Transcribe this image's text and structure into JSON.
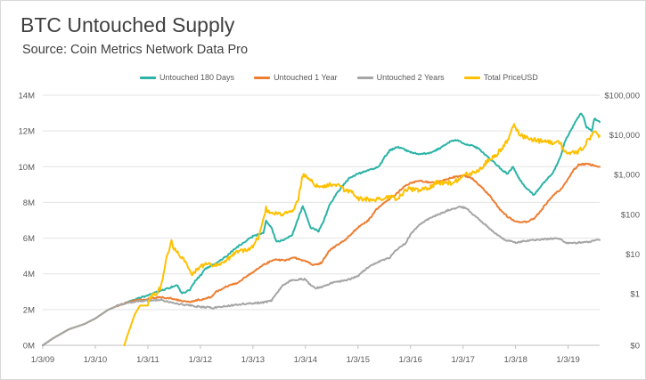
{
  "chart_data": {
    "type": "line",
    "title": "BTC Untouched Supply",
    "subtitle": "Source: Coin Metrics Network Data Pro",
    "x_ticks": [
      "1/3/09",
      "1/3/10",
      "1/3/11",
      "1/3/12",
      "1/3/13",
      "1/3/14",
      "1/3/15",
      "1/3/16",
      "1/3/17",
      "1/3/18",
      "1/3/19"
    ],
    "x_range": [
      2009.0,
      2019.6
    ],
    "y_left": {
      "ticks": [
        "0M",
        "2M",
        "4M",
        "6M",
        "8M",
        "10M",
        "12M",
        "14M"
      ],
      "range": [
        0,
        14
      ]
    },
    "y_right": {
      "ticks": [
        "$0",
        "$1",
        "$10",
        "$100",
        "$1,000",
        "$10,000",
        "$100,000"
      ],
      "range_log10": [
        -1.3,
        5
      ],
      "scale": "log"
    },
    "series": [
      {
        "name": "Untouched 180 Days",
        "color": "#2bb3a6",
        "axis": "left",
        "points": [
          [
            2009.0,
            0.0
          ],
          [
            2009.2,
            0.4
          ],
          [
            2009.5,
            0.9
          ],
          [
            2009.8,
            1.2
          ],
          [
            2010.0,
            1.5
          ],
          [
            2010.25,
            2.0
          ],
          [
            2010.5,
            2.3
          ],
          [
            2010.75,
            2.55
          ],
          [
            2011.0,
            2.8
          ],
          [
            2011.2,
            3.0
          ],
          [
            2011.4,
            3.2
          ],
          [
            2011.55,
            3.4
          ],
          [
            2011.65,
            2.9
          ],
          [
            2011.8,
            3.1
          ],
          [
            2011.9,
            3.6
          ],
          [
            2012.0,
            3.9
          ],
          [
            2012.1,
            4.3
          ],
          [
            2012.3,
            4.6
          ],
          [
            2012.5,
            5.0
          ],
          [
            2012.7,
            5.5
          ],
          [
            2012.9,
            5.9
          ],
          [
            2013.0,
            6.1
          ],
          [
            2013.2,
            6.3
          ],
          [
            2013.25,
            7.0
          ],
          [
            2013.35,
            6.6
          ],
          [
            2013.45,
            5.8
          ],
          [
            2013.6,
            5.9
          ],
          [
            2013.75,
            6.2
          ],
          [
            2013.85,
            7.0
          ],
          [
            2013.95,
            7.8
          ],
          [
            2014.0,
            7.4
          ],
          [
            2014.1,
            6.6
          ],
          [
            2014.25,
            6.4
          ],
          [
            2014.35,
            7.0
          ],
          [
            2014.45,
            7.8
          ],
          [
            2014.55,
            8.3
          ],
          [
            2014.7,
            8.9
          ],
          [
            2014.85,
            9.4
          ],
          [
            2015.0,
            9.6
          ],
          [
            2015.2,
            9.8
          ],
          [
            2015.4,
            10.0
          ],
          [
            2015.5,
            10.5
          ],
          [
            2015.6,
            10.9
          ],
          [
            2015.75,
            11.1
          ],
          [
            2015.85,
            11.0
          ],
          [
            2016.0,
            10.8
          ],
          [
            2016.2,
            10.7
          ],
          [
            2016.4,
            10.8
          ],
          [
            2016.6,
            11.1
          ],
          [
            2016.75,
            11.4
          ],
          [
            2016.9,
            11.5
          ],
          [
            2017.0,
            11.3
          ],
          [
            2017.15,
            11.2
          ],
          [
            2017.3,
            11.0
          ],
          [
            2017.45,
            10.6
          ],
          [
            2017.6,
            10.2
          ],
          [
            2017.75,
            9.8
          ],
          [
            2017.85,
            9.6
          ],
          [
            2017.95,
            10.0
          ],
          [
            2018.05,
            9.4
          ],
          [
            2018.2,
            8.8
          ],
          [
            2018.35,
            8.4
          ],
          [
            2018.5,
            9.0
          ],
          [
            2018.7,
            9.6
          ],
          [
            2018.85,
            10.5
          ],
          [
            2018.95,
            11.5
          ],
          [
            2019.05,
            12.0
          ],
          [
            2019.15,
            12.6
          ],
          [
            2019.25,
            13.0
          ],
          [
            2019.3,
            12.7
          ],
          [
            2019.35,
            12.2
          ],
          [
            2019.45,
            12.0
          ],
          [
            2019.5,
            12.7
          ],
          [
            2019.6,
            12.5
          ]
        ]
      },
      {
        "name": "Untouched 1 Year",
        "color": "#ed7d31",
        "axis": "left",
        "points": [
          [
            2009.0,
            0.0
          ],
          [
            2009.2,
            0.4
          ],
          [
            2009.5,
            0.9
          ],
          [
            2009.8,
            1.2
          ],
          [
            2010.0,
            1.5
          ],
          [
            2010.25,
            2.0
          ],
          [
            2010.5,
            2.3
          ],
          [
            2010.75,
            2.5
          ],
          [
            2011.0,
            2.6
          ],
          [
            2011.25,
            2.7
          ],
          [
            2011.5,
            2.6
          ],
          [
            2011.6,
            2.5
          ],
          [
            2011.8,
            2.45
          ],
          [
            2012.0,
            2.55
          ],
          [
            2012.2,
            2.7
          ],
          [
            2012.3,
            3.0
          ],
          [
            2012.5,
            3.3
          ],
          [
            2012.7,
            3.5
          ],
          [
            2012.9,
            3.9
          ],
          [
            2013.0,
            4.1
          ],
          [
            2013.2,
            4.5
          ],
          [
            2013.4,
            4.8
          ],
          [
            2013.6,
            4.75
          ],
          [
            2013.8,
            4.9
          ],
          [
            2014.0,
            4.7
          ],
          [
            2014.15,
            4.5
          ],
          [
            2014.3,
            4.6
          ],
          [
            2014.45,
            5.3
          ],
          [
            2014.6,
            5.6
          ],
          [
            2014.75,
            5.9
          ],
          [
            2014.9,
            6.3
          ],
          [
            2015.0,
            6.6
          ],
          [
            2015.2,
            7.0
          ],
          [
            2015.35,
            7.6
          ],
          [
            2015.5,
            8.0
          ],
          [
            2015.7,
            8.4
          ],
          [
            2015.85,
            8.8
          ],
          [
            2016.0,
            9.1
          ],
          [
            2016.2,
            9.2
          ],
          [
            2016.4,
            9.1
          ],
          [
            2016.6,
            9.2
          ],
          [
            2016.8,
            9.4
          ],
          [
            2017.0,
            9.5
          ],
          [
            2017.15,
            9.4
          ],
          [
            2017.3,
            9.0
          ],
          [
            2017.5,
            8.4
          ],
          [
            2017.7,
            7.6
          ],
          [
            2017.85,
            7.2
          ],
          [
            2018.0,
            6.9
          ],
          [
            2018.2,
            6.9
          ],
          [
            2018.35,
            7.1
          ],
          [
            2018.5,
            7.6
          ],
          [
            2018.6,
            8.0
          ],
          [
            2018.75,
            8.5
          ],
          [
            2018.85,
            8.7
          ],
          [
            2019.0,
            9.3
          ],
          [
            2019.1,
            9.8
          ],
          [
            2019.2,
            10.1
          ],
          [
            2019.3,
            10.15
          ],
          [
            2019.45,
            10.1
          ],
          [
            2019.6,
            10.0
          ]
        ]
      },
      {
        "name": "Untouched 2 Years",
        "color": "#a5a5a5",
        "axis": "left",
        "points": [
          [
            2009.0,
            0.0
          ],
          [
            2009.2,
            0.4
          ],
          [
            2009.5,
            0.9
          ],
          [
            2009.8,
            1.2
          ],
          [
            2010.0,
            1.5
          ],
          [
            2010.25,
            2.0
          ],
          [
            2010.5,
            2.3
          ],
          [
            2010.75,
            2.45
          ],
          [
            2011.0,
            2.5
          ],
          [
            2011.25,
            2.55
          ],
          [
            2011.5,
            2.35
          ],
          [
            2011.75,
            2.25
          ],
          [
            2012.0,
            2.15
          ],
          [
            2012.25,
            2.1
          ],
          [
            2012.5,
            2.2
          ],
          [
            2012.75,
            2.3
          ],
          [
            2013.0,
            2.35
          ],
          [
            2013.2,
            2.4
          ],
          [
            2013.35,
            2.5
          ],
          [
            2013.45,
            2.9
          ],
          [
            2013.55,
            3.3
          ],
          [
            2013.7,
            3.6
          ],
          [
            2013.9,
            3.7
          ],
          [
            2014.0,
            3.7
          ],
          [
            2014.1,
            3.35
          ],
          [
            2014.2,
            3.2
          ],
          [
            2014.35,
            3.3
          ],
          [
            2014.5,
            3.5
          ],
          [
            2014.7,
            3.6
          ],
          [
            2014.85,
            3.7
          ],
          [
            2015.0,
            3.9
          ],
          [
            2015.2,
            4.4
          ],
          [
            2015.4,
            4.7
          ],
          [
            2015.6,
            4.9
          ],
          [
            2015.75,
            5.4
          ],
          [
            2015.9,
            5.7
          ],
          [
            2016.0,
            6.2
          ],
          [
            2016.15,
            6.7
          ],
          [
            2016.35,
            7.1
          ],
          [
            2016.55,
            7.35
          ],
          [
            2016.75,
            7.6
          ],
          [
            2016.95,
            7.75
          ],
          [
            2017.05,
            7.7
          ],
          [
            2017.2,
            7.3
          ],
          [
            2017.4,
            6.8
          ],
          [
            2017.6,
            6.3
          ],
          [
            2017.8,
            5.9
          ],
          [
            2018.0,
            5.75
          ],
          [
            2018.2,
            5.85
          ],
          [
            2018.4,
            5.9
          ],
          [
            2018.6,
            5.95
          ],
          [
            2018.8,
            6.0
          ],
          [
            2019.0,
            5.7
          ],
          [
            2019.2,
            5.75
          ],
          [
            2019.4,
            5.8
          ],
          [
            2019.6,
            5.9
          ]
        ]
      },
      {
        "name": "Total PriceUSD",
        "color": "#ffc000",
        "axis": "right",
        "points": [
          [
            2010.55,
            0.05
          ],
          [
            2010.6,
            0.08
          ],
          [
            2010.75,
            0.3
          ],
          [
            2010.85,
            0.5
          ],
          [
            2011.0,
            0.5
          ],
          [
            2011.05,
            0.8
          ],
          [
            2011.15,
            1.0
          ],
          [
            2011.25,
            1.5
          ],
          [
            2011.35,
            8.0
          ],
          [
            2011.45,
            20.0
          ],
          [
            2011.5,
            13.0
          ],
          [
            2011.6,
            10.0
          ],
          [
            2011.75,
            5.0
          ],
          [
            2011.85,
            3.0
          ],
          [
            2012.0,
            5.0
          ],
          [
            2012.15,
            5.5
          ],
          [
            2012.3,
            5.0
          ],
          [
            2012.5,
            7.0
          ],
          [
            2012.65,
            11.0
          ],
          [
            2012.8,
            12.0
          ],
          [
            2012.95,
            13.0
          ],
          [
            2013.1,
            25.0
          ],
          [
            2013.25,
            140.0
          ],
          [
            2013.35,
            100.0
          ],
          [
            2013.45,
            110.0
          ],
          [
            2013.6,
            100.0
          ],
          [
            2013.75,
            130.0
          ],
          [
            2013.85,
            200.0
          ],
          [
            2013.95,
            1000.0
          ],
          [
            2014.05,
            800.0
          ],
          [
            2014.15,
            600.0
          ],
          [
            2014.3,
            450.0
          ],
          [
            2014.45,
            550.0
          ],
          [
            2014.6,
            580.0
          ],
          [
            2014.75,
            400.0
          ],
          [
            2014.9,
            350.0
          ],
          [
            2015.0,
            250.0
          ],
          [
            2015.15,
            240.0
          ],
          [
            2015.3,
            230.0
          ],
          [
            2015.45,
            240.0
          ],
          [
            2015.6,
            270.0
          ],
          [
            2015.75,
            250.0
          ],
          [
            2015.85,
            330.0
          ],
          [
            2015.95,
            430.0
          ],
          [
            2016.15,
            410.0
          ],
          [
            2016.35,
            450.0
          ],
          [
            2016.5,
            650.0
          ],
          [
            2016.65,
            600.0
          ],
          [
            2016.8,
            620.0
          ],
          [
            2016.95,
            800.0
          ],
          [
            2017.05,
            1000.0
          ],
          [
            2017.2,
            1100.0
          ],
          [
            2017.35,
            1500.0
          ],
          [
            2017.5,
            2500.0
          ],
          [
            2017.6,
            2800.0
          ],
          [
            2017.7,
            4000.0
          ],
          [
            2017.8,
            6000.0
          ],
          [
            2017.9,
            10000.0
          ],
          [
            2017.97,
            19000.0
          ],
          [
            2018.05,
            11000.0
          ],
          [
            2018.15,
            9000.0
          ],
          [
            2018.3,
            8000.0
          ],
          [
            2018.45,
            7000.0
          ],
          [
            2018.55,
            7500.0
          ],
          [
            2018.7,
            6500.0
          ],
          [
            2018.85,
            6300.0
          ],
          [
            2018.92,
            4000.0
          ],
          [
            2019.0,
            3700.0
          ],
          [
            2019.1,
            3500.0
          ],
          [
            2019.2,
            3900.0
          ],
          [
            2019.3,
            5000.0
          ],
          [
            2019.4,
            8000.0
          ],
          [
            2019.5,
            12000.0
          ],
          [
            2019.55,
            10000.0
          ],
          [
            2019.6,
            9500.0
          ]
        ]
      }
    ],
    "legend": [
      "Untouched 180 Days",
      "Untouched 1 Year",
      "Untouched 2 Years",
      "Total PriceUSD"
    ],
    "legend_placement": "top-center",
    "grid": "horizontal"
  }
}
